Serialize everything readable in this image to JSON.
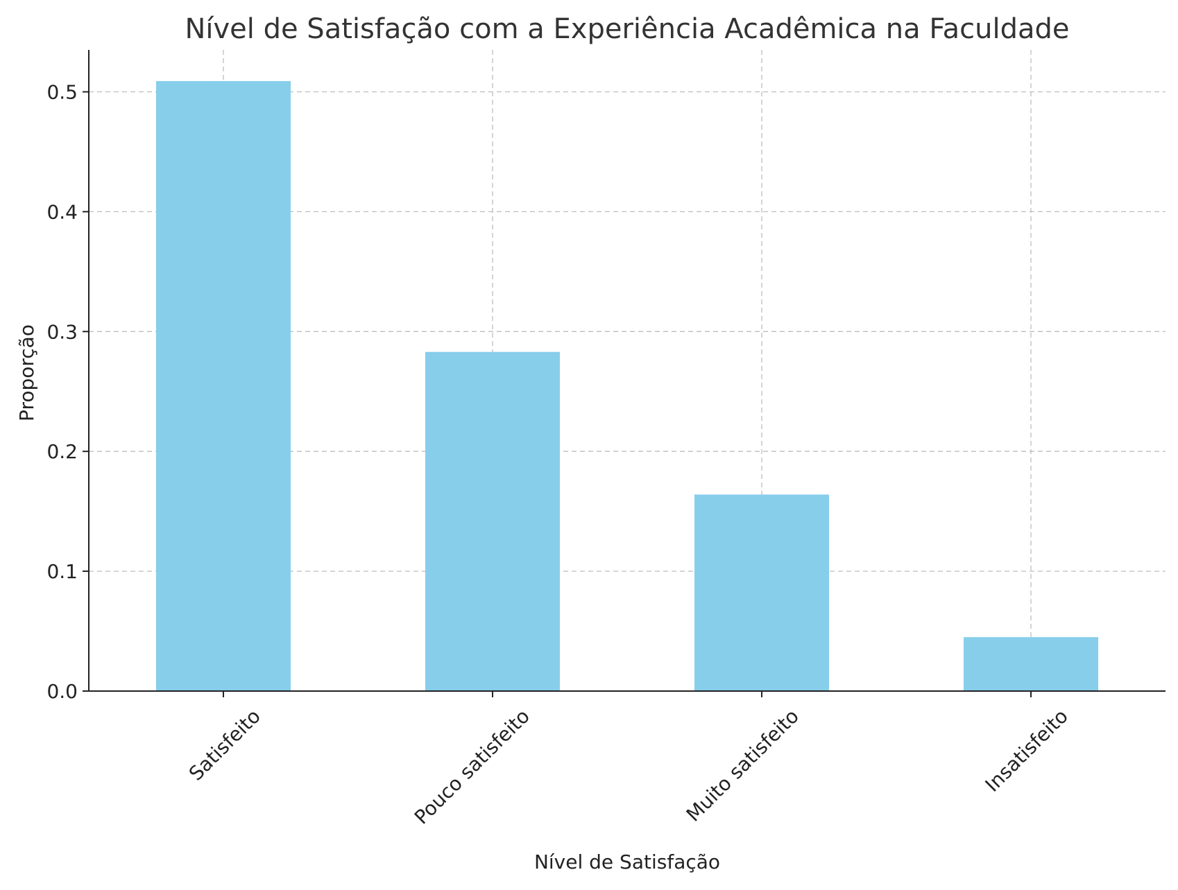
{
  "chart_data": {
    "type": "bar",
    "title": "Nível de Satisfação com a Experiência Acadêmica na Faculdade",
    "xlabel": "Nível de Satisfação",
    "ylabel": "Proporção",
    "categories": [
      "Satisfeito",
      "Pouco satisfeito",
      "Muito satisfeito",
      "Insatisfeito"
    ],
    "values": [
      0.509,
      0.283,
      0.164,
      0.045
    ],
    "ylim": [
      0,
      0.535
    ],
    "yticks": [
      "0.0",
      "0.1",
      "0.2",
      "0.3",
      "0.4",
      "0.5"
    ],
    "grid": true,
    "bar_color": "#87CEEB"
  }
}
